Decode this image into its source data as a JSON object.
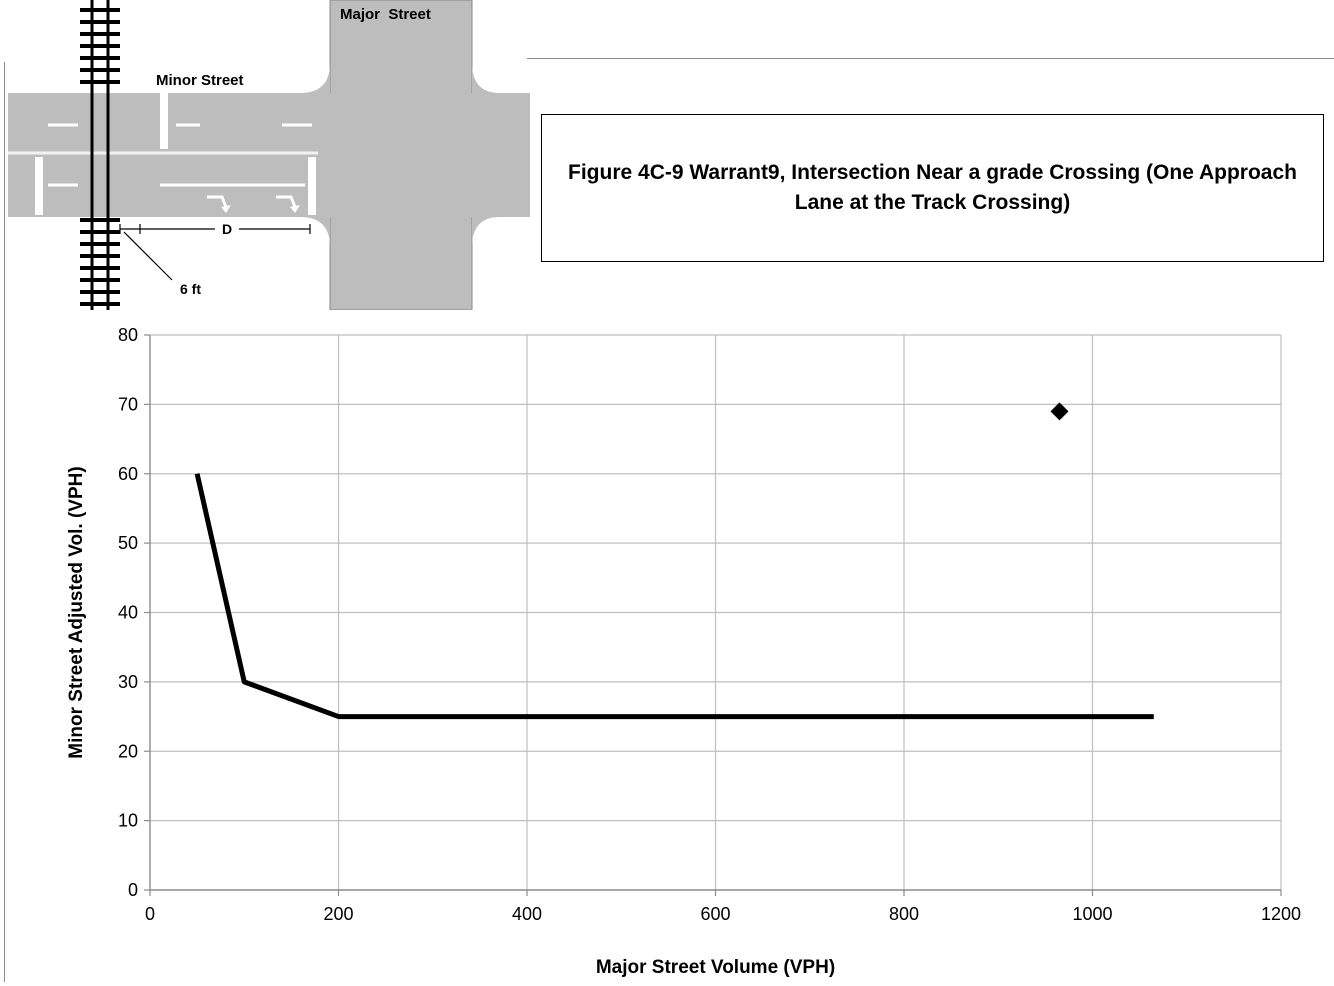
{
  "diagram": {
    "major_street_label": "Major  Street",
    "minor_street_label": "Minor Street",
    "distance_label": "D",
    "offset_label": "6 ft"
  },
  "figure_title": "Figure 4C-9 Warrant9, Intersection Near a grade Crossing (One Approach Lane at the Track Crossing)",
  "colors": {
    "road": "#bdbdbd",
    "line": "#000000",
    "grid": "#bfbfbf"
  },
  "chart_data": {
    "type": "line",
    "xlabel": "Major Street Volume (VPH)",
    "ylabel": "Minor Street Adjusted Vol. (VPH)",
    "xlim": [
      0,
      1200
    ],
    "ylim": [
      0,
      80
    ],
    "xticks": [
      0,
      200,
      400,
      600,
      800,
      1000,
      1200
    ],
    "yticks": [
      0,
      10,
      20,
      30,
      40,
      50,
      60,
      70,
      80
    ],
    "grid": true,
    "series": [
      {
        "type": "line",
        "x": [
          50,
          100,
          200,
          1065
        ],
        "y": [
          60,
          30,
          25,
          25
        ]
      },
      {
        "type": "scatter",
        "marker": "diamond",
        "x": [
          965
        ],
        "y": [
          69
        ]
      }
    ]
  }
}
